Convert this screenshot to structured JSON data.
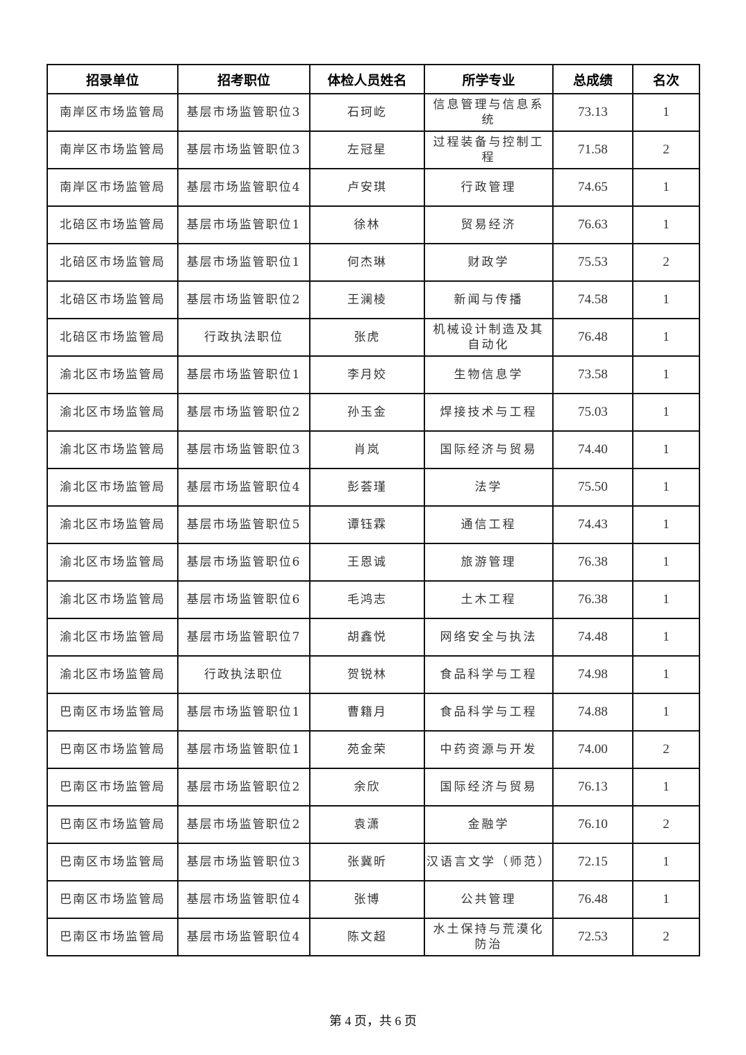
{
  "table": {
    "headers": [
      "招录单位",
      "招考职位",
      "体检人员姓名",
      "所学专业",
      "总成绩",
      "名次"
    ],
    "rows": [
      [
        "南岸区市场监管局",
        "基层市场监管职位3",
        "石珂屹",
        "信息管理与信息系统",
        "73.13",
        "1"
      ],
      [
        "南岸区市场监管局",
        "基层市场监管职位3",
        "左冠星",
        "过程装备与控制工程",
        "71.58",
        "2"
      ],
      [
        "南岸区市场监管局",
        "基层市场监管职位4",
        "卢安琪",
        "行政管理",
        "74.65",
        "1"
      ],
      [
        "北碚区市场监管局",
        "基层市场监管职位1",
        "徐林",
        "贸易经济",
        "76.63",
        "1"
      ],
      [
        "北碚区市场监管局",
        "基层市场监管职位1",
        "何杰琳",
        "财政学",
        "75.53",
        "2"
      ],
      [
        "北碚区市场监管局",
        "基层市场监管职位2",
        "王澜棱",
        "新闻与传播",
        "74.58",
        "1"
      ],
      [
        "北碚区市场监管局",
        "行政执法职位",
        "张虎",
        "机械设计制造及其自动化",
        "76.48",
        "1"
      ],
      [
        "渝北区市场监管局",
        "基层市场监管职位1",
        "李月姣",
        "生物信息学",
        "73.58",
        "1"
      ],
      [
        "渝北区市场监管局",
        "基层市场监管职位2",
        "孙玉金",
        "焊接技术与工程",
        "75.03",
        "1"
      ],
      [
        "渝北区市场监管局",
        "基层市场监管职位3",
        "肖岚",
        "国际经济与贸易",
        "74.40",
        "1"
      ],
      [
        "渝北区市场监管局",
        "基层市场监管职位4",
        "彭荟瑾",
        "法学",
        "75.50",
        "1"
      ],
      [
        "渝北区市场监管局",
        "基层市场监管职位5",
        "谭钰霖",
        "通信工程",
        "74.43",
        "1"
      ],
      [
        "渝北区市场监管局",
        "基层市场监管职位6",
        "王恩诚",
        "旅游管理",
        "76.38",
        "1"
      ],
      [
        "渝北区市场监管局",
        "基层市场监管职位6",
        "毛鸿志",
        "土木工程",
        "76.38",
        "1"
      ],
      [
        "渝北区市场监管局",
        "基层市场监管职位7",
        "胡鑫悦",
        "网络安全与执法",
        "74.48",
        "1"
      ],
      [
        "渝北区市场监管局",
        "行政执法职位",
        "贺锐林",
        "食品科学与工程",
        "74.98",
        "1"
      ],
      [
        "巴南区市场监管局",
        "基层市场监管职位1",
        "曹籍月",
        "食品科学与工程",
        "74.88",
        "1"
      ],
      [
        "巴南区市场监管局",
        "基层市场监管职位1",
        "苑金荣",
        "中药资源与开发",
        "74.00",
        "2"
      ],
      [
        "巴南区市场监管局",
        "基层市场监管职位2",
        "余欣",
        "国际经济与贸易",
        "76.13",
        "1"
      ],
      [
        "巴南区市场监管局",
        "基层市场监管职位2",
        "袁潇",
        "金融学",
        "76.10",
        "2"
      ],
      [
        "巴南区市场监管局",
        "基层市场监管职位3",
        "张冀昕",
        "汉语言文学（师范）",
        "72.15",
        "1"
      ],
      [
        "巴南区市场监管局",
        "基层市场监管职位4",
        "张博",
        "公共管理",
        "76.48",
        "1"
      ],
      [
        "巴南区市场监管局",
        "基层市场监管职位4",
        "陈文超",
        "水土保持与荒漠化防治",
        "72.53",
        "2"
      ]
    ]
  },
  "footer": "第 4 页，共 6 页"
}
